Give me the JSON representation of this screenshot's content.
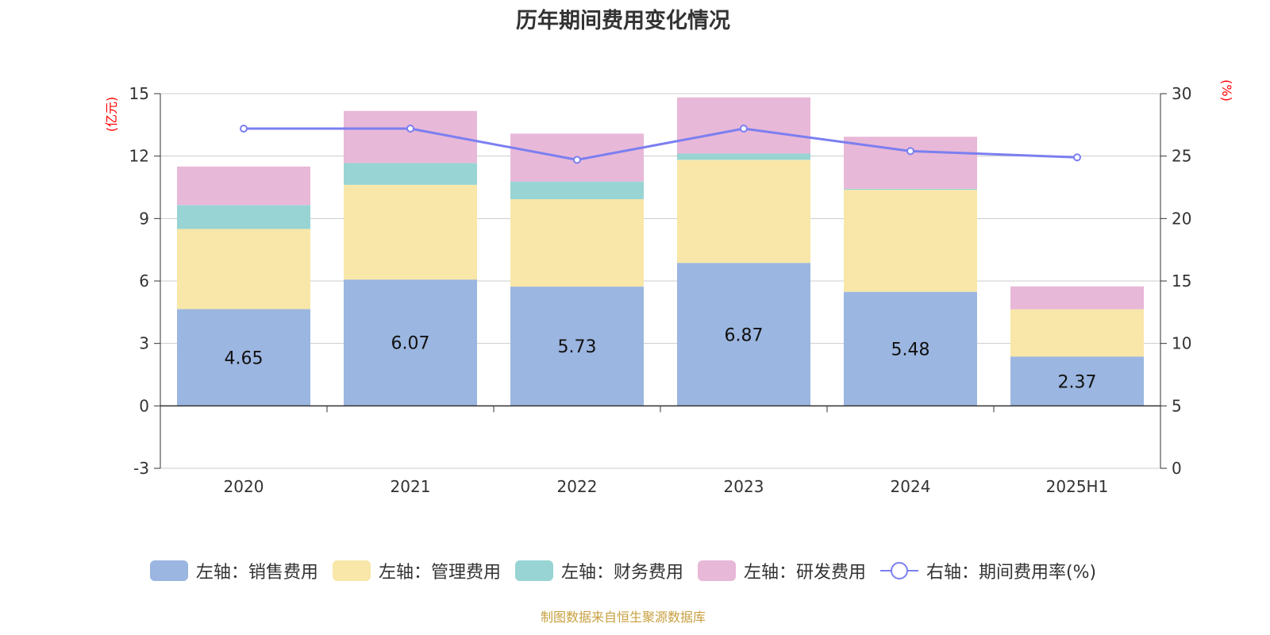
{
  "title": "历年期间费用变化情况",
  "source": "制图数据来自恒生聚源数据库",
  "chart_data": {
    "type": "bar",
    "stacked": true,
    "categories": [
      "2020",
      "2021",
      "2022",
      "2023",
      "2024",
      "2025H1"
    ],
    "left_axis": {
      "unit": "(亿元)",
      "ylim": [
        -3,
        15
      ],
      "ticks": [
        "-3",
        "0",
        "3",
        "6",
        "9",
        "12",
        "15"
      ]
    },
    "right_axis": {
      "unit": "(%)",
      "ylim": [
        0,
        30
      ],
      "ticks": [
        "0",
        "5",
        "10",
        "15",
        "20",
        "25",
        "30"
      ]
    },
    "grid": true,
    "legend_position": "bottom",
    "series": [
      {
        "name": "左轴：销售费用",
        "axis": "left",
        "kind": "bar",
        "color": "#9bb6e0",
        "values": [
          4.65,
          6.07,
          5.73,
          6.87,
          5.48,
          2.37
        ],
        "labels": [
          "4.65",
          "6.07",
          "5.73",
          "6.87",
          "5.48",
          "2.37"
        ]
      },
      {
        "name": "左轴：管理费用",
        "axis": "left",
        "kind": "bar",
        "color": "#f8e7a8",
        "values": [
          3.85,
          4.55,
          4.2,
          4.95,
          4.9,
          2.27
        ]
      },
      {
        "name": "左轴：财务费用",
        "axis": "left",
        "kind": "bar",
        "color": "#98d4d4",
        "values": [
          1.15,
          1.05,
          0.85,
          0.3,
          0.05,
          0.0
        ]
      },
      {
        "name": "左轴：研发费用",
        "axis": "left",
        "kind": "bar",
        "color": "#e8b8d8",
        "values": [
          1.85,
          2.5,
          2.3,
          2.7,
          2.5,
          1.1
        ]
      },
      {
        "name": "右轴：期间费用率(%)",
        "axis": "right",
        "kind": "line",
        "color": "#7b7ff0",
        "values": [
          27.2,
          27.2,
          24.7,
          27.2,
          25.4,
          24.9
        ]
      }
    ]
  }
}
